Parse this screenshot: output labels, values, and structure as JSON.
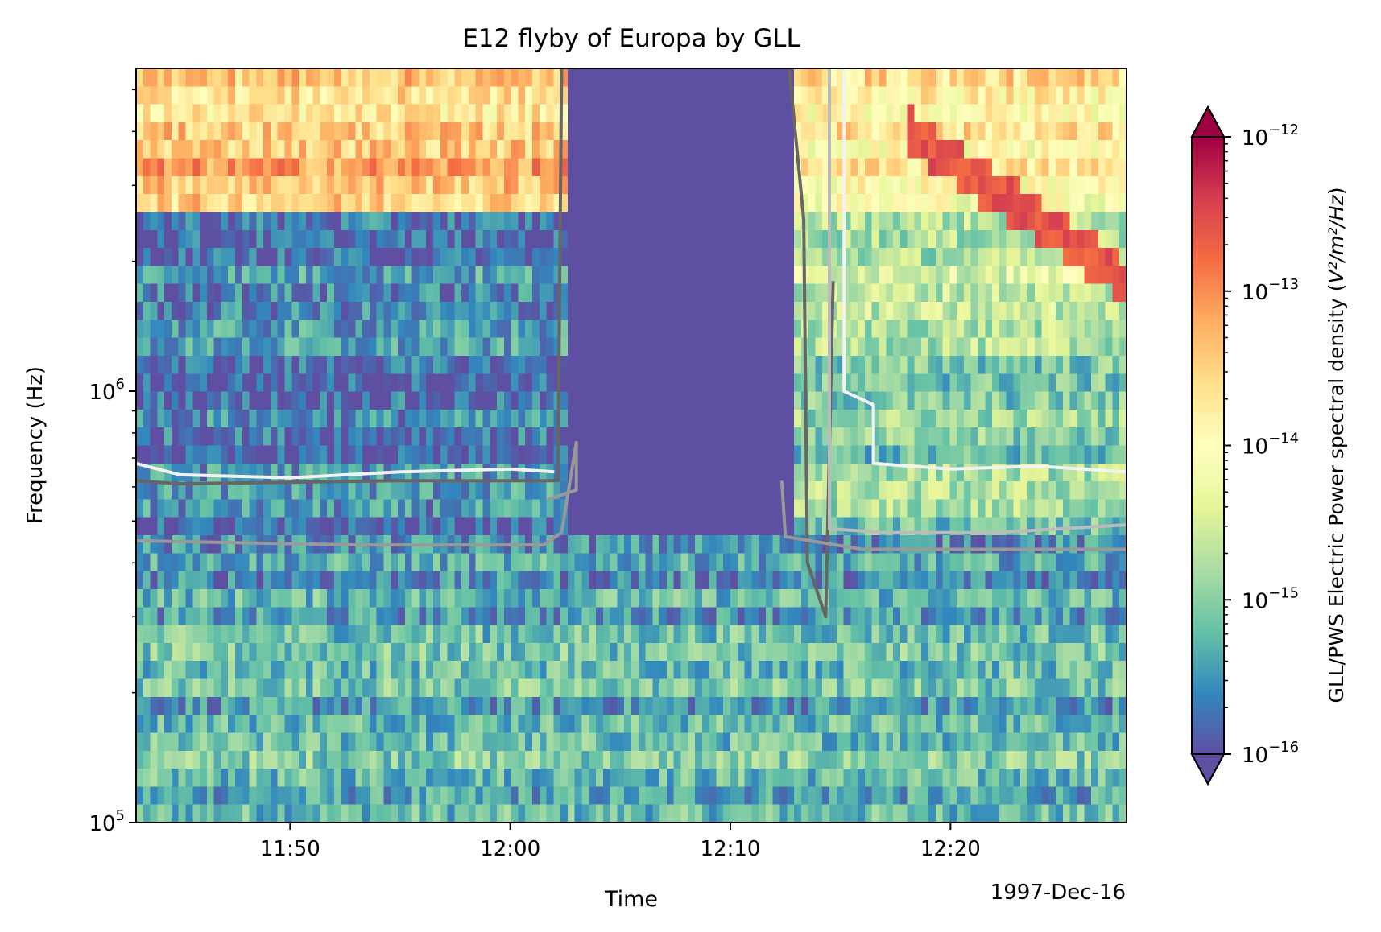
{
  "chart_data": {
    "type": "heatmap",
    "title": "E12 flyby of Europa by GLL",
    "xlabel": "Time",
    "ylabel": "Frequency (Hz)",
    "date_label": "1997-Dec-16",
    "x_range": [
      "1997-12-16T11:43:00",
      "1997-12-16T12:28:00"
    ],
    "x_ticks": [
      {
        "time": "1997-12-16T11:50:00",
        "label": "11:50"
      },
      {
        "time": "1997-12-16T12:00:00",
        "label": "12:00"
      },
      {
        "time": "1997-12-16T12:10:00",
        "label": "12:10"
      },
      {
        "time": "1997-12-16T12:20:00",
        "label": "12:20"
      }
    ],
    "y_scale": "log",
    "y_range_hz": [
      100000,
      5600000
    ],
    "y_ticks": [
      {
        "value": 100000,
        "base": "10",
        "exp": "5"
      },
      {
        "value": 1000000,
        "base": "10",
        "exp": "6"
      }
    ],
    "colorbar": {
      "label": "GLL/PWS Electric Power spectral density (V²/m²/Hz)",
      "label_main": "GLL/PWS Electric Power spectral density (",
      "label_units": "V²/m²/Hz",
      "label_close": ")",
      "scale": "log",
      "range": [
        1e-16,
        1e-12
      ],
      "colormap": "Spectral_r",
      "extend": "both",
      "ticks": [
        {
          "value": 1e-16,
          "base": "10",
          "exp": "−16"
        },
        {
          "value": 1e-15,
          "base": "10",
          "exp": "−15"
        },
        {
          "value": 1e-14,
          "base": "10",
          "exp": "−14"
        },
        {
          "value": 1e-13,
          "base": "10",
          "exp": "−13"
        },
        {
          "value": 1e-12,
          "base": "10",
          "exp": "−12"
        }
      ]
    },
    "colormap_stops": [
      "#5e4fa2",
      "#3288bd",
      "#66c2a5",
      "#abdda4",
      "#e6f598",
      "#ffffbf",
      "#fee08b",
      "#fdae61",
      "#f46d43",
      "#d53e4f",
      "#9e0142"
    ],
    "spectrogram_summary": {
      "time_bins": 140,
      "frequency_bins": 42,
      "data_gap": {
        "start": "1997-12-16T12:02:40",
        "end": "1997-12-16T12:12:50",
        "log10_psd": -16.2,
        "f_min_hz": 470000
      },
      "bands": [
        {
          "f_min_hz": 4000000,
          "f_max_hz": 5600000,
          "log10_psd_before": -13.6,
          "log10_psd_after": -13.8
        },
        {
          "f_min_hz": 2600000,
          "f_max_hz": 4000000,
          "log10_psd_before": -13.4,
          "log10_psd_after": -14.0
        },
        {
          "f_min_hz": 1500000,
          "f_max_hz": 2600000,
          "log10_psd_before": -15.6,
          "log10_psd_after": -14.6
        },
        {
          "f_min_hz": 470000,
          "f_max_hz": 1500000,
          "log10_psd_before": -15.7,
          "log10_psd_after": -15.0
        },
        {
          "f_min_hz": 300000,
          "f_max_hz": 470000,
          "log10_psd": -15.4
        },
        {
          "f_min_hz": 100000,
          "f_max_hz": 300000,
          "log10_psd": -15.3
        }
      ],
      "emission_feature": {
        "start": "1997-12-16T12:18:00",
        "end": "1997-12-16T12:28:00",
        "f_start_hz": 4000000,
        "f_end_hz": 1800000,
        "log10_psd": -12.6
      }
    },
    "contour_lines": [
      {
        "color": "#666666",
        "points": [
          [
            "11:43:00",
            620000
          ],
          [
            "11:45:00",
            610000
          ],
          [
            "11:50:00",
            615000
          ],
          [
            "11:55:00",
            620000
          ],
          [
            "12:00:00",
            620000
          ],
          [
            "12:02:10",
            620000
          ],
          [
            "12:02:20",
            5600000
          ]
        ]
      },
      {
        "color": "#666666",
        "points": [
          [
            "12:12:40",
            5600000
          ],
          [
            "12:13:20",
            2500000
          ],
          [
            "12:13:30",
            400000
          ],
          [
            "12:14:20",
            300000
          ],
          [
            "12:14:40",
            1800000
          ]
        ]
      },
      {
        "color": "#999999",
        "points": [
          [
            "11:43:00",
            450000
          ],
          [
            "11:53:00",
            440000
          ],
          [
            "12:01:30",
            440000
          ],
          [
            "12:02:20",
            470000
          ],
          [
            "12:03:00",
            760000
          ],
          [
            "12:03:00",
            590000
          ],
          [
            "12:01:40",
            560000
          ]
        ]
      },
      {
        "color": "#999999",
        "points": [
          [
            "12:12:20",
            620000
          ],
          [
            "12:12:30",
            460000
          ],
          [
            "12:16:00",
            430000
          ],
          [
            "12:28:00",
            430000
          ]
        ]
      },
      {
        "color": "#bbbbbb",
        "points": [
          [
            "12:14:30",
            5600000
          ],
          [
            "12:14:30",
            480000
          ],
          [
            "12:17:00",
            470000
          ],
          [
            "12:22:00",
            470000
          ],
          [
            "12:28:00",
            490000
          ]
        ]
      },
      {
        "color": "#f2f2f2",
        "points": [
          [
            "11:43:00",
            680000
          ],
          [
            "11:45:00",
            640000
          ],
          [
            "11:50:00",
            630000
          ],
          [
            "11:55:00",
            650000
          ],
          [
            "12:00:00",
            660000
          ],
          [
            "12:02:00",
            650000
          ]
        ]
      },
      {
        "color": "#f2f2f2",
        "points": [
          [
            "12:15:10",
            5600000
          ],
          [
            "12:15:10",
            1000000
          ],
          [
            "12:16:30",
            930000
          ],
          [
            "12:16:30",
            680000
          ],
          [
            "12:20:00",
            660000
          ],
          [
            "12:24:00",
            670000
          ],
          [
            "12:28:00",
            650000
          ]
        ]
      }
    ]
  }
}
